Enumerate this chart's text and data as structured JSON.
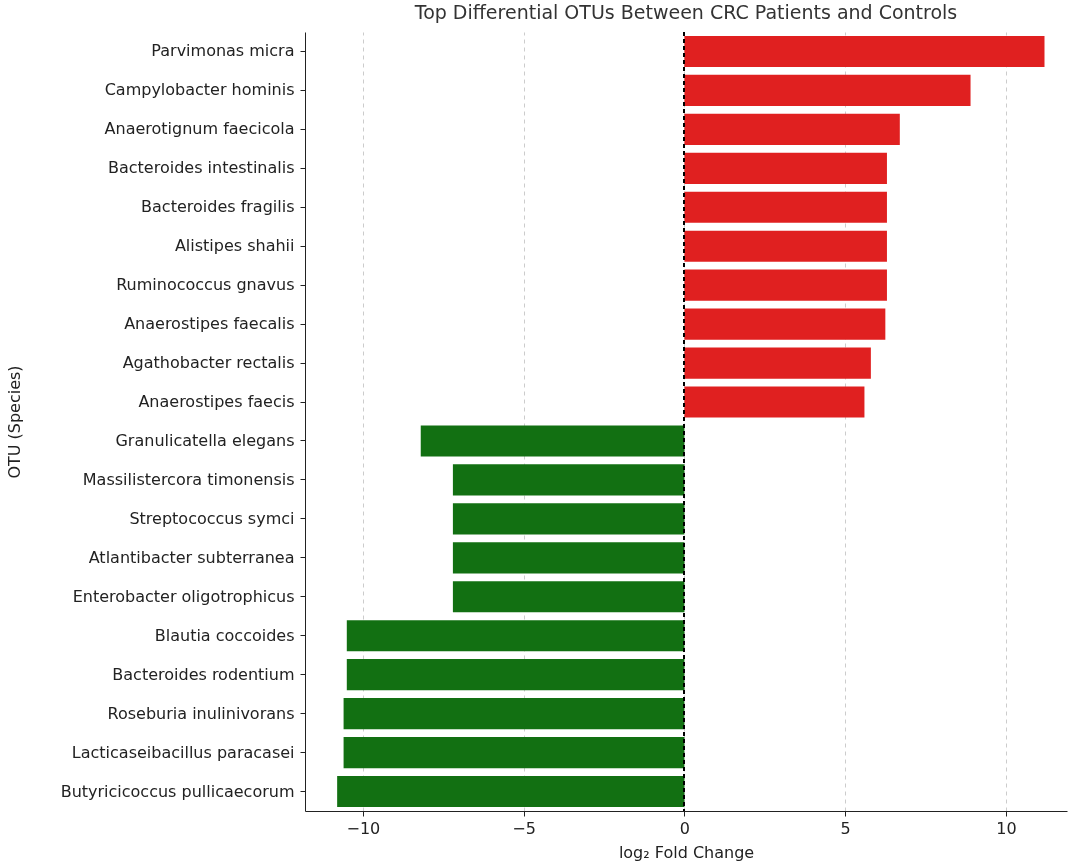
{
  "chart_data": {
    "type": "bar",
    "orientation": "horizontal",
    "title": "Top Differential OTUs Between CRC Patients and Controls",
    "xlabel": "log₂ Fold Change",
    "ylabel": "OTU (Species)",
    "categories": [
      "Parvimonas micra",
      "Campylobacter hominis",
      "Anaerotignum faecicola",
      "Bacteroides intestinalis",
      "Bacteroides fragilis",
      "Alistipes shahii",
      "Ruminococcus gnavus",
      "Anaerostipes faecalis",
      "Agathobacter rectalis",
      "Anaerostipes faecis",
      "Granulicatella elegans",
      "Massilistercora timonensis",
      "Streptococcus symci",
      "Atlantibacter subterranea",
      "Enterobacter oligotrophicus",
      "Blautia coccoides",
      "Bacteroides rodentium",
      "Roseburia inulinivorans",
      "Lacticaseibacillus paracasei",
      "Butyricicoccus pullicaecorum"
    ],
    "values": [
      11.2,
      8.9,
      6.7,
      6.3,
      6.3,
      6.3,
      6.3,
      6.25,
      5.8,
      5.6,
      -8.2,
      -7.2,
      -7.2,
      -7.2,
      -7.2,
      -10.5,
      -10.5,
      -10.6,
      -10.6,
      -10.8
    ],
    "colors": [
      "#e02020",
      "#e02020",
      "#e02020",
      "#e02020",
      "#e02020",
      "#e02020",
      "#e02020",
      "#e02020",
      "#e02020",
      "#e02020",
      "#127012",
      "#127012",
      "#127012",
      "#127012",
      "#127012",
      "#127012",
      "#127012",
      "#127012",
      "#127012",
      "#127012"
    ],
    "xlim": [
      -11.8,
      11.9
    ],
    "xticks": [
      {
        "value": -10,
        "label": "−10"
      },
      {
        "value": -5,
        "label": "−5"
      },
      0,
      5,
      10
    ],
    "grid": "x",
    "ref_lines": [
      {
        "axis": "x",
        "value": 0,
        "color": "#000000",
        "line_style": "dashed"
      }
    ]
  }
}
